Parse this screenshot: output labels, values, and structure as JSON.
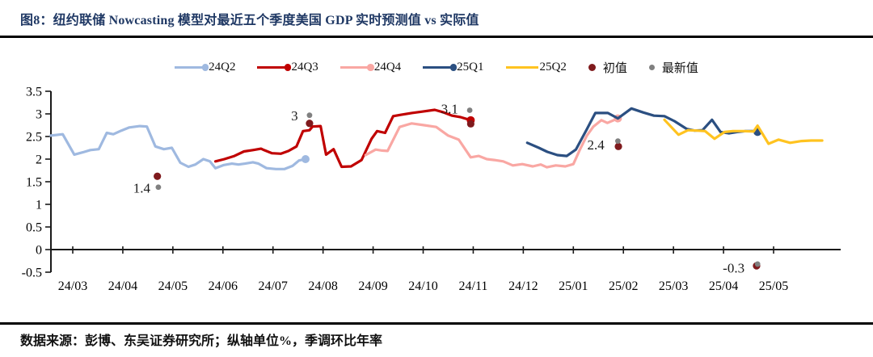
{
  "header": {
    "title": "图8：纽约联储 Nowcasting 模型对最近五个季度美国 GDP 实时预测值 vs 实际值"
  },
  "footer": {
    "source": "数据来源：彭博、东吴证券研究所；纵轴单位%，季调环比年率"
  },
  "colors": {
    "title_navy": "#1F3864",
    "axis": "#1a1a1a",
    "q24q2_light_blue": "#9FB9E0",
    "q24q3_dark_red": "#C00000",
    "q24q4_pink": "#F9A7A3",
    "q25q1_navy": "#2B4F81",
    "q25q2_gold": "#FFC320",
    "initial_dot": "#7F1A1D",
    "latest_dot": "#808080"
  },
  "legend": {
    "items": [
      {
        "label": "24Q2",
        "type": "line-dot",
        "color": "#9FB9E0"
      },
      {
        "label": "24Q3",
        "type": "line-dot",
        "color": "#C00000"
      },
      {
        "label": "24Q4",
        "type": "line-dot",
        "color": "#F9A7A3"
      },
      {
        "label": "25Q1",
        "type": "line-dot",
        "color": "#2B4F81"
      },
      {
        "label": "25Q2",
        "type": "line",
        "color": "#FFC320"
      },
      {
        "label": "初值",
        "type": "dot",
        "color": "#7F1A1D",
        "size": 9
      },
      {
        "label": "最新值",
        "type": "dot",
        "color": "#808080",
        "size": 7
      }
    ]
  },
  "chart_data": {
    "type": "line",
    "title": "纽约联储 Nowcasting 模型对最近五个季度美国 GDP 实时预测值 vs 实际值",
    "ylabel": "%（季调环比年率）",
    "x_unit": "months since 24/03 (0 = 24/03, 1 = 24/04 ... 14 = 25/05)",
    "x_axis": {
      "tick_labels": [
        "24/03",
        "24/04",
        "24/05",
        "24/06",
        "24/07",
        "24/08",
        "24/09",
        "24/10",
        "24/11",
        "24/12",
        "25/01",
        "25/02",
        "25/03",
        "25/04",
        "25/05"
      ]
    },
    "y_axis": {
      "ticks": [
        3.5,
        3,
        2.5,
        2,
        1.5,
        1,
        0.5,
        0,
        -0.5
      ],
      "min": -0.5,
      "max": 3.5
    },
    "grid": false,
    "legend_position": "top-center",
    "series": [
      {
        "name": "24Q2",
        "color": "#9FB9E0",
        "end_marker": true,
        "points": [
          [
            -0.44,
            2.52
          ],
          [
            -0.2,
            2.55
          ],
          [
            0.03,
            2.1
          ],
          [
            0.2,
            2.15
          ],
          [
            0.35,
            2.2
          ],
          [
            0.52,
            2.22
          ],
          [
            0.68,
            2.58
          ],
          [
            0.81,
            2.55
          ],
          [
            0.97,
            2.63
          ],
          [
            1.13,
            2.7
          ],
          [
            1.34,
            2.73
          ],
          [
            1.48,
            2.72
          ],
          [
            1.65,
            2.28
          ],
          [
            1.82,
            2.22
          ],
          [
            1.98,
            2.25
          ],
          [
            2.15,
            1.92
          ],
          [
            2.31,
            1.83
          ],
          [
            2.45,
            1.88
          ],
          [
            2.61,
            2.0
          ],
          [
            2.74,
            1.95
          ],
          [
            2.85,
            1.8
          ],
          [
            3.02,
            1.87
          ],
          [
            3.18,
            1.9
          ],
          [
            3.31,
            1.88
          ],
          [
            3.44,
            1.9
          ],
          [
            3.6,
            1.93
          ],
          [
            3.71,
            1.9
          ],
          [
            3.87,
            1.8
          ],
          [
            4.06,
            1.78
          ],
          [
            4.23,
            1.78
          ],
          [
            4.39,
            1.85
          ],
          [
            4.52,
            1.97
          ],
          [
            4.65,
            2.0
          ]
        ]
      },
      {
        "name": "24Q3",
        "color": "#C00000",
        "end_marker": true,
        "points": [
          [
            2.85,
            1.95
          ],
          [
            3.03,
            2.0
          ],
          [
            3.23,
            2.07
          ],
          [
            3.42,
            2.17
          ],
          [
            3.6,
            2.2
          ],
          [
            3.76,
            2.23
          ],
          [
            3.82,
            2.2
          ],
          [
            3.98,
            2.13
          ],
          [
            4.16,
            2.12
          ],
          [
            4.31,
            2.18
          ],
          [
            4.47,
            2.28
          ],
          [
            4.6,
            2.62
          ],
          [
            4.73,
            2.64
          ],
          [
            4.79,
            2.72
          ],
          [
            4.95,
            2.73
          ],
          [
            5.06,
            2.1
          ],
          [
            5.21,
            2.22
          ],
          [
            5.37,
            1.83
          ],
          [
            5.56,
            1.84
          ],
          [
            5.77,
            1.98
          ],
          [
            5.97,
            2.45
          ],
          [
            6.08,
            2.62
          ],
          [
            6.24,
            2.58
          ],
          [
            6.4,
            2.95
          ],
          [
            6.56,
            2.98
          ],
          [
            6.77,
            3.02
          ],
          [
            6.98,
            3.05
          ],
          [
            7.23,
            3.09
          ],
          [
            7.39,
            3.04
          ],
          [
            7.58,
            2.96
          ],
          [
            7.74,
            2.93
          ],
          [
            7.95,
            2.86
          ]
        ]
      },
      {
        "name": "24Q4",
        "color": "#F9A7A3",
        "end_marker": true,
        "points": [
          [
            5.85,
            2.09
          ],
          [
            6.05,
            2.21
          ],
          [
            6.18,
            2.19
          ],
          [
            6.29,
            2.18
          ],
          [
            6.53,
            2.71
          ],
          [
            6.77,
            2.79
          ],
          [
            7.02,
            2.75
          ],
          [
            7.26,
            2.71
          ],
          [
            7.5,
            2.52
          ],
          [
            7.71,
            2.43
          ],
          [
            7.95,
            2.04
          ],
          [
            8.11,
            2.07
          ],
          [
            8.27,
            2.0
          ],
          [
            8.42,
            1.98
          ],
          [
            8.6,
            1.95
          ],
          [
            8.79,
            1.86
          ],
          [
            8.98,
            1.89
          ],
          [
            9.19,
            1.84
          ],
          [
            9.35,
            1.88
          ],
          [
            9.47,
            1.82
          ],
          [
            9.65,
            1.86
          ],
          [
            9.84,
            1.84
          ],
          [
            10.0,
            1.89
          ],
          [
            10.13,
            2.21
          ],
          [
            10.27,
            2.52
          ],
          [
            10.4,
            2.72
          ],
          [
            10.56,
            2.86
          ],
          [
            10.68,
            2.8
          ],
          [
            10.89,
            2.9
          ]
        ]
      },
      {
        "name": "25Q1",
        "color": "#2B4F81",
        "end_marker": true,
        "points": [
          [
            9.08,
            2.36
          ],
          [
            9.31,
            2.25
          ],
          [
            9.48,
            2.16
          ],
          [
            9.68,
            2.09
          ],
          [
            9.87,
            2.07
          ],
          [
            10.05,
            2.21
          ],
          [
            10.27,
            2.66
          ],
          [
            10.44,
            3.02
          ],
          [
            10.69,
            3.02
          ],
          [
            10.89,
            2.9
          ],
          [
            11.16,
            3.12
          ],
          [
            11.4,
            3.03
          ],
          [
            11.61,
            2.96
          ],
          [
            11.82,
            2.95
          ],
          [
            12.02,
            2.84
          ],
          [
            12.26,
            2.67
          ],
          [
            12.42,
            2.63
          ],
          [
            12.58,
            2.64
          ],
          [
            12.77,
            2.87
          ],
          [
            12.94,
            2.6
          ],
          [
            13.11,
            2.57
          ],
          [
            13.27,
            2.6
          ],
          [
            13.44,
            2.62
          ],
          [
            13.6,
            2.62
          ],
          [
            13.68,
            2.6
          ]
        ]
      },
      {
        "name": "25Q2",
        "color": "#FFC320",
        "end_marker": false,
        "points": [
          [
            11.82,
            2.87
          ],
          [
            12.1,
            2.54
          ],
          [
            12.29,
            2.64
          ],
          [
            12.47,
            2.63
          ],
          [
            12.63,
            2.62
          ],
          [
            12.82,
            2.45
          ],
          [
            13.02,
            2.6
          ],
          [
            13.19,
            2.62
          ],
          [
            13.39,
            2.62
          ],
          [
            13.6,
            2.61
          ],
          [
            13.68,
            2.74
          ],
          [
            13.9,
            2.34
          ],
          [
            14.1,
            2.43
          ],
          [
            14.33,
            2.36
          ],
          [
            14.56,
            2.4
          ],
          [
            14.75,
            2.41
          ],
          [
            14.97,
            2.41
          ]
        ]
      }
    ],
    "actual_value_annotations": [
      {
        "text": "1.4",
        "initial": [
          1.69,
          1.62
        ],
        "latest": [
          1.71,
          1.38
        ],
        "label_anchor": [
          1.55,
          1.35
        ]
      },
      {
        "text": "3",
        "initial": [
          4.73,
          2.79
        ],
        "latest": [
          4.73,
          2.97
        ],
        "label_anchor": [
          4.5,
          2.95
        ]
      },
      {
        "text": "3.1",
        "initial": [
          7.95,
          2.78
        ],
        "latest": [
          7.93,
          3.08
        ],
        "label_anchor": [
          7.7,
          3.1
        ]
      },
      {
        "text": "2.4",
        "initial": [
          10.9,
          2.28
        ],
        "latest": [
          10.89,
          2.4
        ],
        "label_anchor": [
          10.62,
          2.3
        ]
      },
      {
        "text": "-0.3",
        "initial": [
          13.66,
          -0.36
        ],
        "latest": [
          13.68,
          -0.32
        ],
        "label_anchor": [
          13.42,
          -0.42
        ]
      }
    ]
  }
}
